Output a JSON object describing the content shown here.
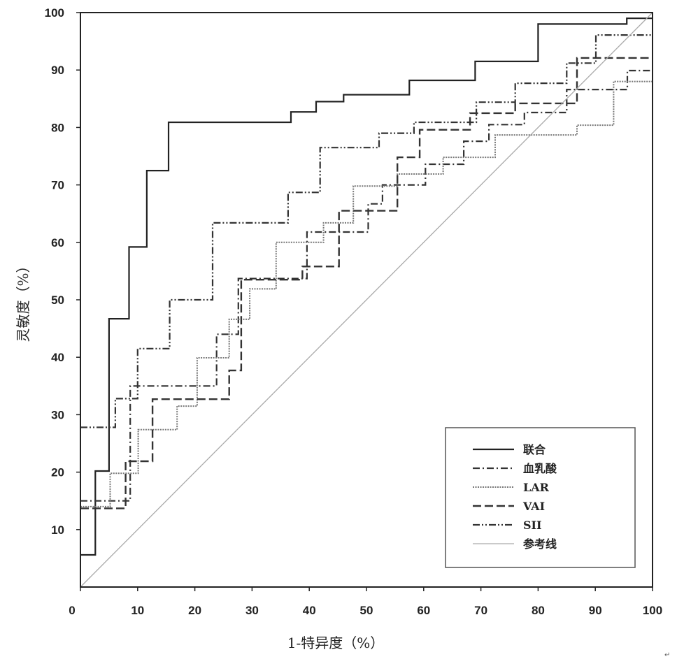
{
  "chart_data": {
    "type": "line",
    "title": "",
    "xlabel": "1-特异度（%）",
    "ylabel": "灵敏度（%）",
    "xlim": [
      0,
      100
    ],
    "ylim": [
      0,
      100
    ],
    "x_ticks": [
      "0",
      "10",
      "20",
      "30",
      "40",
      "50",
      "60",
      "70",
      "80",
      "90",
      "100"
    ],
    "y_ticks": [
      "10",
      "20",
      "30",
      "40",
      "50",
      "60",
      "70",
      "80",
      "90",
      "100"
    ],
    "grid": false,
    "legend_position": "bottom-right",
    "series": [
      {
        "name": "联合",
        "style": "solid",
        "color": "#222222",
        "points": [
          [
            0,
            5.6
          ],
          [
            2.6,
            5.6
          ],
          [
            2.6,
            20.2
          ],
          [
            5,
            20.2
          ],
          [
            5,
            46.7
          ],
          [
            8.5,
            46.7
          ],
          [
            8.5,
            59.2
          ],
          [
            11.6,
            59.2
          ],
          [
            11.6,
            72.5
          ],
          [
            15.4,
            72.5
          ],
          [
            15.4,
            80.9
          ],
          [
            36.8,
            80.9
          ],
          [
            36.8,
            82.7
          ],
          [
            41.2,
            82.7
          ],
          [
            41.2,
            84.5
          ],
          [
            46,
            84.5
          ],
          [
            46,
            85.7
          ],
          [
            57.5,
            85.7
          ],
          [
            57.5,
            88.2
          ],
          [
            69,
            88.2
          ],
          [
            69,
            91.5
          ],
          [
            80,
            91.5
          ],
          [
            80,
            98
          ],
          [
            95.5,
            98
          ],
          [
            95.5,
            99
          ],
          [
            100,
            99
          ]
        ]
      },
      {
        "name": "血乳酸",
        "style": "dash-dot",
        "color": "#333333",
        "points": [
          [
            0,
            15
          ],
          [
            8.7,
            15
          ],
          [
            8.7,
            35
          ],
          [
            23.8,
            35
          ],
          [
            23.8,
            44
          ],
          [
            27.6,
            44
          ],
          [
            27.6,
            53.7
          ],
          [
            39.6,
            53.7
          ],
          [
            39.6,
            61.8
          ],
          [
            50.3,
            61.8
          ],
          [
            50.3,
            66.7
          ],
          [
            52.8,
            66.7
          ],
          [
            52.8,
            70
          ],
          [
            60.3,
            70
          ],
          [
            60.3,
            73.6
          ],
          [
            67,
            73.6
          ],
          [
            67,
            77.6
          ],
          [
            71.4,
            77.6
          ],
          [
            71.4,
            80.5
          ],
          [
            77.6,
            80.5
          ],
          [
            77.6,
            82.6
          ],
          [
            85,
            82.6
          ],
          [
            85,
            86.6
          ],
          [
            95.6,
            86.6
          ],
          [
            95.6,
            89.9
          ],
          [
            100,
            89.9
          ]
        ]
      },
      {
        "name": "LAR",
        "style": "dotted",
        "color": "#777777",
        "points": [
          [
            0,
            14
          ],
          [
            5.2,
            14
          ],
          [
            5.2,
            19.8
          ],
          [
            10.1,
            19.8
          ],
          [
            10.1,
            27.4
          ],
          [
            16.9,
            27.4
          ],
          [
            16.9,
            31.5
          ],
          [
            20.4,
            31.5
          ],
          [
            20.4,
            39.9
          ],
          [
            26,
            39.9
          ],
          [
            26,
            46.6
          ],
          [
            29.6,
            46.6
          ],
          [
            29.6,
            51.9
          ],
          [
            34.2,
            51.9
          ],
          [
            34.2,
            60
          ],
          [
            42.5,
            60
          ],
          [
            42.5,
            63.4
          ],
          [
            47.7,
            63.4
          ],
          [
            47.7,
            69.8
          ],
          [
            55.4,
            69.8
          ],
          [
            55.4,
            71.9
          ],
          [
            63.4,
            71.9
          ],
          [
            63.4,
            74.8
          ],
          [
            72.5,
            74.8
          ],
          [
            72.5,
            78.7
          ],
          [
            86.8,
            78.7
          ],
          [
            86.8,
            80.4
          ],
          [
            93.2,
            80.4
          ],
          [
            93.2,
            88
          ],
          [
            100,
            88
          ]
        ]
      },
      {
        "name": "VAI",
        "style": "dashed",
        "color": "#333333",
        "points": [
          [
            0,
            13.7
          ],
          [
            7.9,
            13.7
          ],
          [
            7.9,
            21.9
          ],
          [
            12.6,
            21.9
          ],
          [
            12.6,
            32.7
          ],
          [
            26,
            32.7
          ],
          [
            26,
            37.7
          ],
          [
            28.1,
            37.7
          ],
          [
            28.1,
            53.5
          ],
          [
            38.8,
            53.5
          ],
          [
            38.8,
            55.8
          ],
          [
            45.2,
            55.8
          ],
          [
            45.2,
            65.5
          ],
          [
            55.4,
            65.5
          ],
          [
            55.4,
            74.8
          ],
          [
            59.3,
            74.8
          ],
          [
            59.3,
            79.6
          ],
          [
            68.1,
            79.6
          ],
          [
            68.1,
            82.5
          ],
          [
            76,
            82.5
          ],
          [
            76,
            84.2
          ],
          [
            86.8,
            84.2
          ],
          [
            86.8,
            92.1
          ],
          [
            100,
            92.1
          ]
        ]
      },
      {
        "name": "SII",
        "style": "dash-dot-dot",
        "color": "#333333",
        "points": [
          [
            0,
            27.8
          ],
          [
            6.1,
            27.8
          ],
          [
            6.1,
            32.8
          ],
          [
            10,
            32.8
          ],
          [
            10,
            41.5
          ],
          [
            15.6,
            41.5
          ],
          [
            15.6,
            50
          ],
          [
            23.1,
            50
          ],
          [
            23.1,
            63.4
          ],
          [
            36.3,
            63.4
          ],
          [
            36.3,
            68.7
          ],
          [
            41.9,
            68.7
          ],
          [
            41.9,
            76.5
          ],
          [
            52.2,
            76.5
          ],
          [
            52.2,
            79
          ],
          [
            58.3,
            79
          ],
          [
            58.3,
            80.9
          ],
          [
            69.2,
            80.9
          ],
          [
            69.2,
            84.4
          ],
          [
            76,
            84.4
          ],
          [
            76,
            87.7
          ],
          [
            85,
            87.7
          ],
          [
            85,
            91.2
          ],
          [
            90.1,
            91.2
          ],
          [
            90.1,
            96.1
          ],
          [
            100,
            96.1
          ]
        ]
      },
      {
        "name": "参考线",
        "style": "solid-thin",
        "color": "#aaaaaa",
        "points": [
          [
            0,
            0
          ],
          [
            100,
            100
          ]
        ]
      }
    ]
  },
  "corner_mark": "↵"
}
